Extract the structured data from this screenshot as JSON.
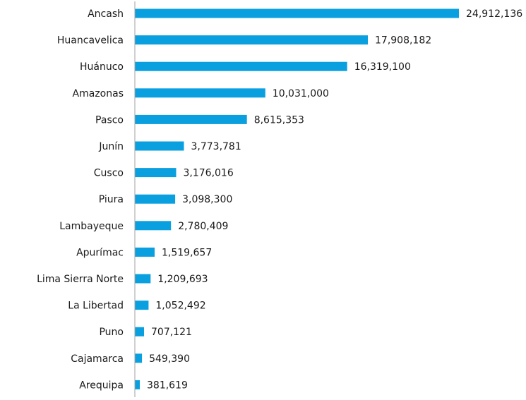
{
  "chart_data": {
    "type": "bar",
    "orientation": "horizontal",
    "title": "",
    "xlabel": "",
    "ylabel": "",
    "categories": [
      "Ancash",
      "Huancavelica",
      "Huánuco",
      "Amazonas",
      "Pasco",
      "Junín",
      "Cusco",
      "Piura",
      "Lambayeque",
      "Apurímac",
      "Lima Sierra Norte",
      "La Libertad",
      "Puno",
      "Cajamarca",
      "Arequipa"
    ],
    "values": [
      24912136,
      17908182,
      16319100,
      10031000,
      8615353,
      3773781,
      3176016,
      3098300,
      2780409,
      1519657,
      1209693,
      1052492,
      707121,
      549390,
      381619
    ],
    "value_labels": [
      "24,912,136",
      "17,908,182",
      "16,319,100",
      "10,031,000",
      "8,615,353",
      "3,773,781",
      "3,176,016",
      "3,098,300",
      "2,780,409",
      "1,519,657",
      "1,209,693",
      "1,052,492",
      "707,121",
      "549,390",
      "381,619"
    ],
    "xlim": [
      0,
      24912136
    ],
    "grid": false,
    "legend": "none",
    "bar_color": "#0aa0e0",
    "axis_color": "#a0a0a0"
  }
}
